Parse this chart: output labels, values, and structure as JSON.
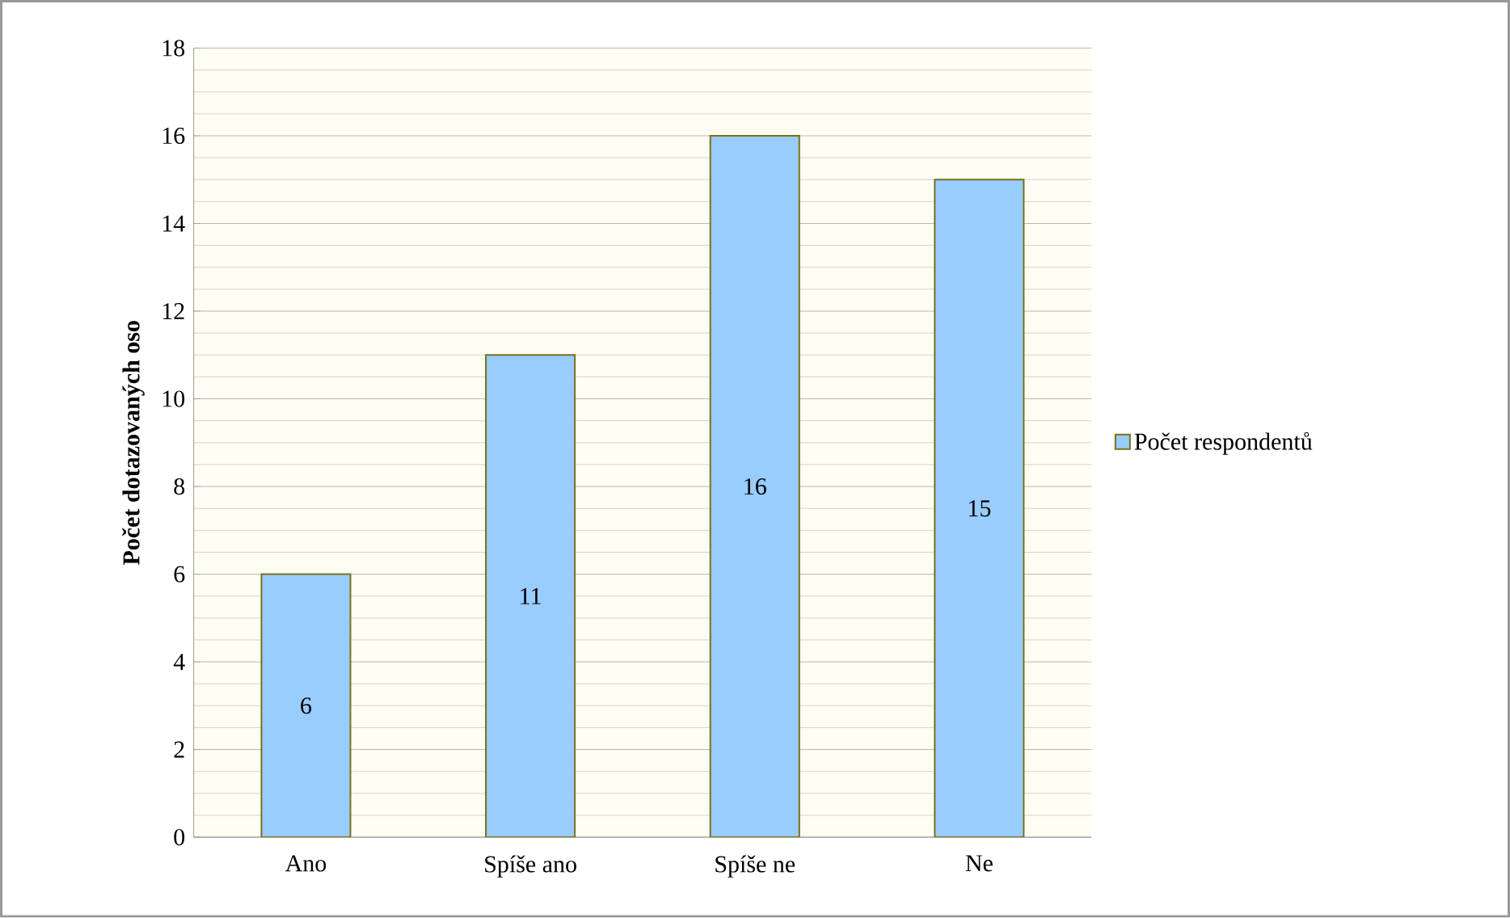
{
  "chart_data": {
    "type": "bar",
    "ylabel": "Počet dotazovaných oso",
    "categories": [
      "Ano",
      "Spíše ano",
      "Spíše ne",
      "Ne"
    ],
    "series": [
      {
        "name": "Počet respondentů",
        "color": "#99ccff",
        "values": [
          6,
          11,
          16,
          15
        ]
      }
    ],
    "ylim": [
      0,
      18
    ],
    "yticks": [
      0,
      2,
      4,
      6,
      8,
      10,
      12,
      14,
      16,
      18
    ],
    "grid": "y",
    "legend": "right",
    "data_labels": true
  }
}
